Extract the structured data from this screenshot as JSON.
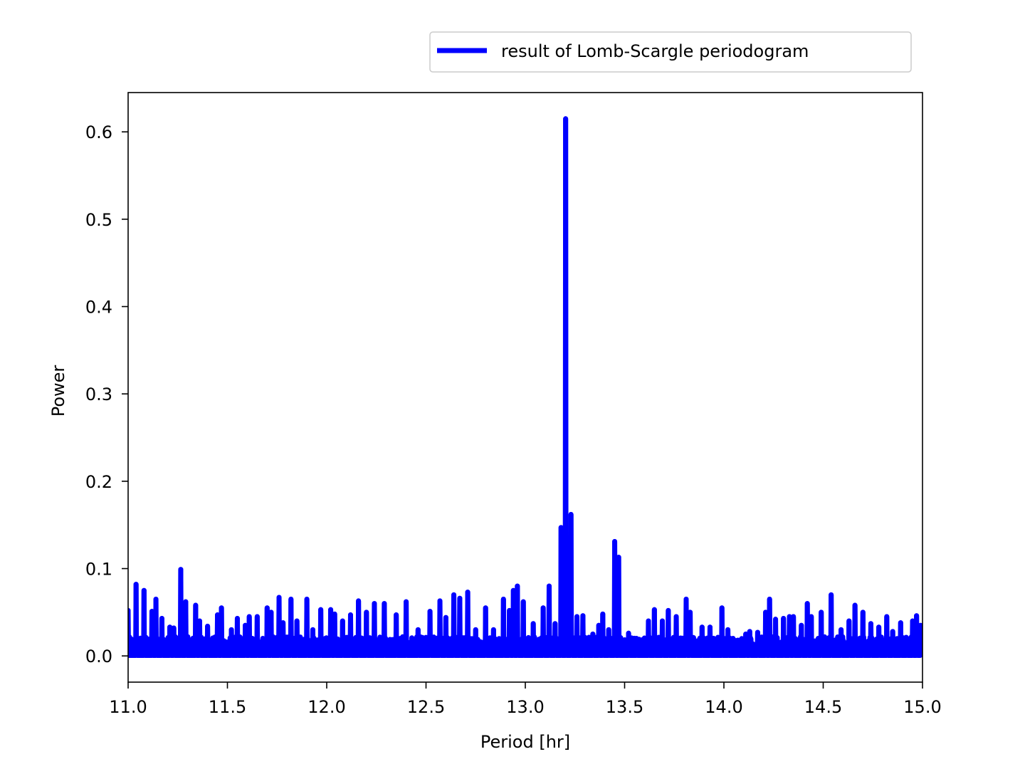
{
  "chart_data": {
    "type": "line",
    "title": "",
    "xlabel": "Period [hr]",
    "ylabel": "Power",
    "xlim": [
      11.0,
      15.0
    ],
    "ylim": [
      -0.03,
      0.645
    ],
    "x_ticks": [
      11.0,
      11.5,
      12.0,
      12.5,
      13.0,
      13.5,
      14.0,
      14.5,
      15.0
    ],
    "x_tick_labels": [
      "11.0",
      "11.5",
      "12.0",
      "12.5",
      "13.0",
      "13.5",
      "14.0",
      "14.5",
      "15.0"
    ],
    "y_ticks": [
      0.0,
      0.1,
      0.2,
      0.3,
      0.4,
      0.5,
      0.6
    ],
    "y_tick_labels": [
      "0.0",
      "0.1",
      "0.2",
      "0.3",
      "0.4",
      "0.5",
      "0.6"
    ],
    "grid": false,
    "legend": {
      "position": "top-right, outside axes",
      "entries": [
        "result of Lomb-Scargle periodogram"
      ]
    },
    "colors": {
      "series": "#0000ff",
      "axes": "#000000",
      "background": "#ffffff"
    },
    "series": [
      {
        "name": "result of Lomb-Scargle periodogram",
        "color": "#0000ff",
        "noise_floor": 0.002,
        "peaks": [
          {
            "x": 11.0,
            "y": 0.052
          },
          {
            "x": 11.04,
            "y": 0.082
          },
          {
            "x": 11.08,
            "y": 0.075
          },
          {
            "x": 11.12,
            "y": 0.051
          },
          {
            "x": 11.14,
            "y": 0.065
          },
          {
            "x": 11.17,
            "y": 0.043
          },
          {
            "x": 11.21,
            "y": 0.033
          },
          {
            "x": 11.23,
            "y": 0.032
          },
          {
            "x": 11.265,
            "y": 0.099
          },
          {
            "x": 11.29,
            "y": 0.062
          },
          {
            "x": 11.34,
            "y": 0.058
          },
          {
            "x": 11.36,
            "y": 0.04
          },
          {
            "x": 11.4,
            "y": 0.034
          },
          {
            "x": 11.45,
            "y": 0.047
          },
          {
            "x": 11.47,
            "y": 0.055
          },
          {
            "x": 11.52,
            "y": 0.03
          },
          {
            "x": 11.55,
            "y": 0.043
          },
          {
            "x": 11.59,
            "y": 0.035
          },
          {
            "x": 11.61,
            "y": 0.045
          },
          {
            "x": 11.65,
            "y": 0.045
          },
          {
            "x": 11.7,
            "y": 0.055
          },
          {
            "x": 11.72,
            "y": 0.05
          },
          {
            "x": 11.76,
            "y": 0.067
          },
          {
            "x": 11.78,
            "y": 0.038
          },
          {
            "x": 11.82,
            "y": 0.065
          },
          {
            "x": 11.85,
            "y": 0.04
          },
          {
            "x": 11.9,
            "y": 0.065
          },
          {
            "x": 11.93,
            "y": 0.03
          },
          {
            "x": 11.97,
            "y": 0.053
          },
          {
            "x": 12.02,
            "y": 0.053
          },
          {
            "x": 12.04,
            "y": 0.048
          },
          {
            "x": 12.08,
            "y": 0.04
          },
          {
            "x": 12.12,
            "y": 0.047
          },
          {
            "x": 12.16,
            "y": 0.063
          },
          {
            "x": 12.2,
            "y": 0.05
          },
          {
            "x": 12.24,
            "y": 0.06
          },
          {
            "x": 12.29,
            "y": 0.06
          },
          {
            "x": 12.35,
            "y": 0.047
          },
          {
            "x": 12.4,
            "y": 0.062
          },
          {
            "x": 12.46,
            "y": 0.03
          },
          {
            "x": 12.52,
            "y": 0.051
          },
          {
            "x": 12.57,
            "y": 0.063
          },
          {
            "x": 12.6,
            "y": 0.044
          },
          {
            "x": 12.64,
            "y": 0.07
          },
          {
            "x": 12.67,
            "y": 0.066
          },
          {
            "x": 12.71,
            "y": 0.073
          },
          {
            "x": 12.75,
            "y": 0.03
          },
          {
            "x": 12.8,
            "y": 0.055
          },
          {
            "x": 12.84,
            "y": 0.03
          },
          {
            "x": 12.89,
            "y": 0.065
          },
          {
            "x": 12.92,
            "y": 0.052
          },
          {
            "x": 12.94,
            "y": 0.075
          },
          {
            "x": 12.96,
            "y": 0.08
          },
          {
            "x": 12.99,
            "y": 0.062
          },
          {
            "x": 13.04,
            "y": 0.037
          },
          {
            "x": 13.09,
            "y": 0.055
          },
          {
            "x": 13.12,
            "y": 0.08
          },
          {
            "x": 13.15,
            "y": 0.037
          },
          {
            "x": 13.18,
            "y": 0.147
          },
          {
            "x": 13.203,
            "y": 0.615
          },
          {
            "x": 13.23,
            "y": 0.162
          },
          {
            "x": 13.26,
            "y": 0.045
          },
          {
            "x": 13.29,
            "y": 0.046
          },
          {
            "x": 13.34,
            "y": 0.025
          },
          {
            "x": 13.37,
            "y": 0.035
          },
          {
            "x": 13.39,
            "y": 0.048
          },
          {
            "x": 13.42,
            "y": 0.03
          },
          {
            "x": 13.45,
            "y": 0.131
          },
          {
            "x": 13.47,
            "y": 0.113
          },
          {
            "x": 13.52,
            "y": 0.026
          },
          {
            "x": 13.56,
            "y": 0.02
          },
          {
            "x": 13.62,
            "y": 0.04
          },
          {
            "x": 13.65,
            "y": 0.053
          },
          {
            "x": 13.69,
            "y": 0.04
          },
          {
            "x": 13.72,
            "y": 0.052
          },
          {
            "x": 13.76,
            "y": 0.045
          },
          {
            "x": 13.81,
            "y": 0.065
          },
          {
            "x": 13.83,
            "y": 0.05
          },
          {
            "x": 13.89,
            "y": 0.033
          },
          {
            "x": 13.93,
            "y": 0.033
          },
          {
            "x": 13.99,
            "y": 0.055
          },
          {
            "x": 14.02,
            "y": 0.03
          },
          {
            "x": 14.07,
            "y": 0.018
          },
          {
            "x": 14.11,
            "y": 0.025
          },
          {
            "x": 14.13,
            "y": 0.028
          },
          {
            "x": 14.17,
            "y": 0.027
          },
          {
            "x": 14.21,
            "y": 0.05
          },
          {
            "x": 14.23,
            "y": 0.065
          },
          {
            "x": 14.26,
            "y": 0.042
          },
          {
            "x": 14.3,
            "y": 0.043
          },
          {
            "x": 14.33,
            "y": 0.045
          },
          {
            "x": 14.35,
            "y": 0.045
          },
          {
            "x": 14.39,
            "y": 0.035
          },
          {
            "x": 14.42,
            "y": 0.06
          },
          {
            "x": 14.44,
            "y": 0.045
          },
          {
            "x": 14.49,
            "y": 0.05
          },
          {
            "x": 14.54,
            "y": 0.07
          },
          {
            "x": 14.59,
            "y": 0.03
          },
          {
            "x": 14.63,
            "y": 0.04
          },
          {
            "x": 14.66,
            "y": 0.058
          },
          {
            "x": 14.7,
            "y": 0.05
          },
          {
            "x": 14.74,
            "y": 0.037
          },
          {
            "x": 14.78,
            "y": 0.033
          },
          {
            "x": 14.82,
            "y": 0.045
          },
          {
            "x": 14.85,
            "y": 0.028
          },
          {
            "x": 14.89,
            "y": 0.038
          },
          {
            "x": 14.92,
            "y": 0.02
          },
          {
            "x": 14.95,
            "y": 0.04
          },
          {
            "x": 14.97,
            "y": 0.046
          },
          {
            "x": 14.99,
            "y": 0.035
          }
        ]
      }
    ]
  }
}
